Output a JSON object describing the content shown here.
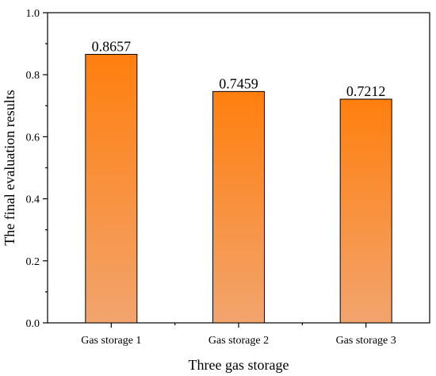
{
  "chart_data": {
    "type": "bar",
    "categories": [
      "Gas storage 1",
      "Gas storage 2",
      "Gas storage 3"
    ],
    "values": [
      0.8657,
      0.7459,
      0.7212
    ],
    "data_labels": [
      "0.8657",
      "0.7459",
      "0.7212"
    ],
    "xlabel": "Three gas storage",
    "ylabel": "The final evaluation results",
    "ylim": [
      0,
      1.0
    ],
    "yticks": [
      0,
      0.2,
      0.4,
      0.6,
      0.8,
      1.0
    ],
    "ytick_labels": [
      "0.0",
      "0.2",
      "0.4",
      "0.6",
      "0.8",
      "1.0"
    ],
    "grid": false,
    "colors": {
      "bar_top": "#ff7f0e",
      "bar_bottom": "#f2a46e",
      "bar_edge": "#000000",
      "axis": "#000000"
    }
  }
}
